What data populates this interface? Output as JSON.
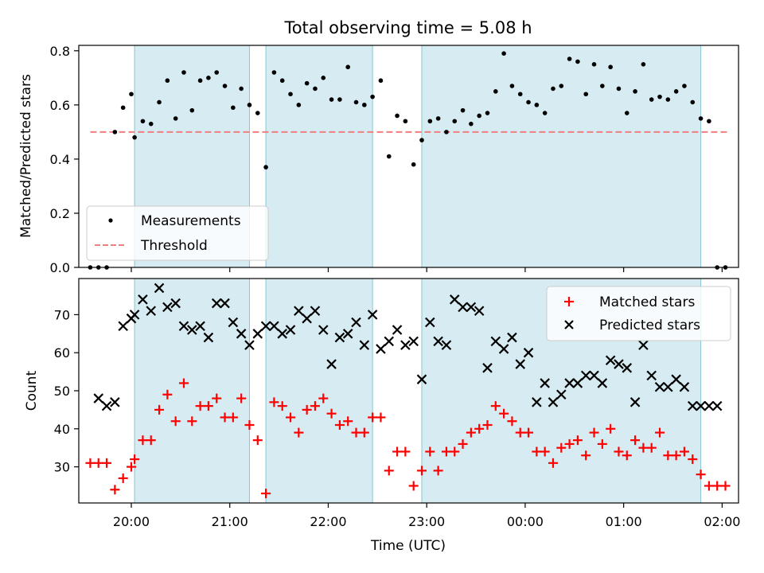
{
  "chart_data": [
    {
      "type": "scatter",
      "title": "Total observing time = 5.08 h",
      "ylabel": "Matched/Predicted stars",
      "xlabel": "",
      "xlim": [
        "19:28",
        "02:10"
      ],
      "ylim": [
        0,
        0.82
      ],
      "yticks": [
        0.0,
        0.2,
        0.4,
        0.6,
        0.8
      ],
      "ytick_labels": [
        "0.0",
        "0.2",
        "0.4",
        "0.6",
        "0.8"
      ],
      "grid": false,
      "legend_position": "lower-left",
      "shaded_intervals": [
        [
          "20:02",
          "21:12"
        ],
        [
          "21:22",
          "22:27"
        ],
        [
          "22:57",
          "01:47"
        ]
      ],
      "threshold": {
        "name": "Threshold",
        "value": 0.5,
        "x_range": [
          "19:35",
          "02:03"
        ],
        "color": "#f08080"
      },
      "series": [
        {
          "name": "Measurements",
          "color": "#000000",
          "x": [
            "19:35",
            "19:40",
            "19:45",
            "19:50",
            "19:55",
            "20:00",
            "20:02",
            "20:07",
            "20:12",
            "20:17",
            "20:22",
            "20:27",
            "20:32",
            "20:37",
            "20:42",
            "20:47",
            "20:52",
            "20:57",
            "21:02",
            "21:07",
            "21:12",
            "21:17",
            "21:22",
            "21:27",
            "21:32",
            "21:37",
            "21:42",
            "21:47",
            "21:52",
            "21:57",
            "22:02",
            "22:07",
            "22:12",
            "22:17",
            "22:22",
            "22:27",
            "22:32",
            "22:37",
            "22:42",
            "22:47",
            "22:52",
            "22:57",
            "23:02",
            "23:07",
            "23:12",
            "23:17",
            "23:22",
            "23:27",
            "23:32",
            "23:37",
            "23:42",
            "23:47",
            "23:52",
            "23:57",
            "00:02",
            "00:07",
            "00:12",
            "00:17",
            "00:22",
            "00:27",
            "00:32",
            "00:37",
            "00:42",
            "00:47",
            "00:52",
            "00:57",
            "01:02",
            "01:07",
            "01:12",
            "01:17",
            "01:22",
            "01:27",
            "01:32",
            "01:37",
            "01:42",
            "01:47",
            "01:52",
            "01:57",
            "02:02"
          ],
          "y": [
            0.0,
            0.0,
            0.0,
            0.5,
            0.59,
            0.64,
            0.48,
            0.54,
            0.53,
            0.61,
            0.69,
            0.55,
            0.72,
            0.58,
            0.69,
            0.7,
            0.72,
            0.67,
            0.59,
            0.66,
            0.6,
            0.57,
            0.37,
            0.72,
            0.69,
            0.64,
            0.6,
            0.68,
            0.66,
            0.7,
            0.62,
            0.62,
            0.74,
            0.61,
            0.6,
            0.63,
            0.69,
            0.41,
            0.56,
            0.54,
            0.38,
            0.47,
            0.54,
            0.55,
            0.5,
            0.54,
            0.58,
            0.53,
            0.56,
            0.57,
            0.65,
            0.79,
            0.67,
            0.64,
            0.61,
            0.6,
            0.57,
            0.66,
            0.67,
            0.77,
            0.76,
            0.64,
            0.75,
            0.67,
            0.74,
            0.66,
            0.57,
            0.65,
            0.75,
            0.62,
            0.63,
            0.62,
            0.65,
            0.67,
            0.61,
            0.55,
            0.54,
            0.0,
            0.0
          ]
        }
      ]
    },
    {
      "type": "scatter",
      "title": "",
      "xlabel": "Time (UTC)",
      "ylabel": "Count",
      "xlim": [
        "19:28",
        "02:10"
      ],
      "ylim": [
        20.5,
        79.5
      ],
      "yticks": [
        30,
        40,
        50,
        60,
        70
      ],
      "xticks": [
        "20:00",
        "21:00",
        "22:00",
        "23:00",
        "00:00",
        "01:00",
        "02:00"
      ],
      "grid": false,
      "legend_position": "upper-right",
      "shaded_intervals": [
        [
          "20:02",
          "21:12"
        ],
        [
          "21:22",
          "22:27"
        ],
        [
          "22:57",
          "01:47"
        ]
      ],
      "series": [
        {
          "name": "Matched stars",
          "marker": "plus",
          "color": "#ff0000",
          "x": [
            "19:35",
            "19:40",
            "19:45",
            "19:50",
            "19:55",
            "20:00",
            "20:02",
            "20:07",
            "20:12",
            "20:17",
            "20:22",
            "20:27",
            "20:32",
            "20:37",
            "20:42",
            "20:47",
            "20:52",
            "20:57",
            "21:02",
            "21:07",
            "21:12",
            "21:17",
            "21:22",
            "21:27",
            "21:32",
            "21:37",
            "21:42",
            "21:47",
            "21:52",
            "21:57",
            "22:02",
            "22:07",
            "22:12",
            "22:17",
            "22:22",
            "22:27",
            "22:32",
            "22:37",
            "22:42",
            "22:47",
            "22:52",
            "22:57",
            "23:02",
            "23:07",
            "23:12",
            "23:17",
            "23:22",
            "23:27",
            "23:32",
            "23:37",
            "23:42",
            "23:47",
            "23:52",
            "23:57",
            "00:02",
            "00:07",
            "00:12",
            "00:17",
            "00:22",
            "00:27",
            "00:32",
            "00:37",
            "00:42",
            "00:47",
            "00:52",
            "00:57",
            "01:02",
            "01:07",
            "01:12",
            "01:17",
            "01:22",
            "01:27",
            "01:32",
            "01:37",
            "01:42",
            "01:47",
            "01:52",
            "01:57",
            "02:02"
          ],
          "y": [
            31,
            31,
            31,
            24,
            27,
            30,
            32,
            37,
            37,
            45,
            49,
            42,
            52,
            42,
            46,
            46,
            48,
            43,
            43,
            48,
            41,
            37,
            23,
            47,
            46,
            43,
            39,
            45,
            46,
            48,
            44,
            41,
            42,
            39,
            39,
            43,
            43,
            29,
            34,
            34,
            25,
            29,
            34,
            29,
            34,
            34,
            36,
            39,
            40,
            41,
            46,
            44,
            42,
            39,
            39,
            34,
            34,
            31,
            35,
            36,
            37,
            33,
            39,
            36,
            40,
            34,
            33,
            37,
            35,
            35,
            39,
            33,
            33,
            34,
            32,
            28,
            25,
            25,
            25
          ]
        },
        {
          "name": "Predicted stars",
          "marker": "x",
          "color": "#000000",
          "x": [
            "19:40",
            "19:45",
            "19:50",
            "19:55",
            "20:00",
            "20:02",
            "20:07",
            "20:12",
            "20:17",
            "20:22",
            "20:27",
            "20:32",
            "20:37",
            "20:42",
            "20:47",
            "20:52",
            "20:57",
            "21:02",
            "21:07",
            "21:12",
            "21:17",
            "21:22",
            "21:27",
            "21:32",
            "21:37",
            "21:42",
            "21:47",
            "21:52",
            "21:57",
            "22:02",
            "22:07",
            "22:12",
            "22:17",
            "22:22",
            "22:27",
            "22:32",
            "22:37",
            "22:42",
            "22:47",
            "22:52",
            "22:57",
            "23:02",
            "23:07",
            "23:12",
            "23:17",
            "23:22",
            "23:27",
            "23:32",
            "23:37",
            "23:42",
            "23:47",
            "23:52",
            "23:57",
            "00:02",
            "00:07",
            "00:12",
            "00:17",
            "00:22",
            "00:27",
            "00:32",
            "00:37",
            "00:42",
            "00:47",
            "00:52",
            "00:57",
            "01:02",
            "01:07",
            "01:12",
            "01:17",
            "01:22",
            "01:27",
            "01:32",
            "01:37",
            "01:42",
            "01:47",
            "01:52",
            "01:57"
          ],
          "y": [
            48,
            46,
            47,
            67,
            69,
            70,
            74,
            71,
            77,
            72,
            73,
            67,
            66,
            67,
            64,
            73,
            73,
            68,
            65,
            62,
            65,
            67,
            67,
            65,
            66,
            71,
            69,
            71,
            66,
            57,
            64,
            65,
            68,
            62,
            70,
            61,
            63,
            66,
            62,
            63,
            53,
            68,
            63,
            62,
            74,
            72,
            72,
            71,
            56,
            63,
            61,
            64,
            57,
            60,
            47,
            52,
            47,
            49,
            52,
            52,
            54,
            54,
            52,
            58,
            57,
            56,
            47,
            62,
            54,
            51,
            51,
            53,
            51,
            46,
            46,
            46,
            46
          ]
        }
      ]
    }
  ]
}
